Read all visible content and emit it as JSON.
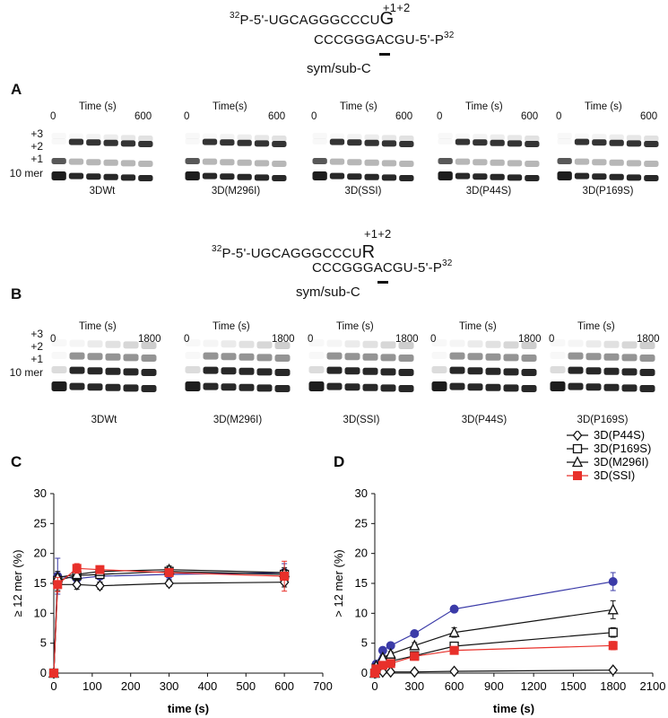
{
  "seq_top": {
    "line1_sup": "32",
    "line1_main": "P-5'-UGCAGGGCCCU",
    "line1_big": "G",
    "positions": "+1+2",
    "line2_main": "CCCGGGACGU-5'-P",
    "line2_sup": "32",
    "substrate": "sym/sub-C"
  },
  "seq_mid": {
    "line1_sup": "32",
    "line1_main": "P-5'-UGCAGGGCCCU",
    "line1_big": "R",
    "positions": "+1+2",
    "line2_main": "CCCGGGACGU-5'-P",
    "line2_sup": "32",
    "substrate": "sym/sub-C"
  },
  "panelA": {
    "letter": "A",
    "row_labels": [
      "+3",
      "+2",
      "+1",
      "10 mer"
    ],
    "gels": [
      {
        "name": "3DWt",
        "time_label": "Time (s)",
        "t0": "0",
        "tend": "600"
      },
      {
        "name": "3D(M296I)",
        "time_label": "Time(s)",
        "t0": "0",
        "tend": "600"
      },
      {
        "name": "3D(SSI)",
        "time_label": "Time (s)",
        "t0": "0",
        "tend": "600"
      },
      {
        "name": "3D(P44S)",
        "time_label": "Time (s)",
        "t0": "0",
        "tend": "600"
      },
      {
        "name": "3D(P169S)",
        "time_label": "Time (s)",
        "t0": "0",
        "tend": "600"
      }
    ]
  },
  "panelB": {
    "letter": "B",
    "row_labels": [
      "+3",
      "+2",
      "+1",
      "10 mer"
    ],
    "gels": [
      {
        "name": "3DWt",
        "time_label": "Time (s)",
        "t0": "0",
        "tend": "1800"
      },
      {
        "name": "3D(M296I)",
        "time_label": "Time (s)",
        "t0": "0",
        "tend": "1800"
      },
      {
        "name": "3D(SSI)",
        "time_label": "Time (s)",
        "t0": "0",
        "tend": "1800"
      },
      {
        "name": "3D(P44S)",
        "time_label": "Time (s)",
        "t0": "0",
        "tend": "1800"
      },
      {
        "name": "3D(P169S)",
        "time_label": "Time (s)",
        "t0": "0",
        "tend": "1800"
      }
    ]
  },
  "chart_data": [
    {
      "panel": "C",
      "type": "line",
      "xlabel": "time (s)",
      "ylabel": "≥ 12 mer (%)",
      "xlim": [
        0,
        700
      ],
      "ylim": [
        0,
        30
      ],
      "xticks": [
        0,
        100,
        200,
        300,
        400,
        500,
        600,
        700
      ],
      "yticks": [
        0,
        5,
        10,
        15,
        20,
        25,
        30
      ],
      "series": [
        {
          "name": "3DWt",
          "color": "#3b3ba8",
          "marker": "circle",
          "x": [
            0,
            10,
            60,
            120,
            300,
            600
          ],
          "y": [
            0,
            16.2,
            15.8,
            16.2,
            16.5,
            16.8
          ],
          "err": [
            0,
            3.0,
            0.8,
            1.0,
            0.8,
            1.5
          ]
        },
        {
          "name": "3D(P44S)",
          "color": "#111111",
          "marker": "diamond-open",
          "x": [
            0,
            10,
            60,
            120,
            300,
            600
          ],
          "y": [
            0,
            14.8,
            14.8,
            14.6,
            15.0,
            15.2
          ],
          "err": [
            0,
            1.0,
            0.8,
            0.6,
            0.5,
            0.8
          ]
        },
        {
          "name": "3D(P169S)",
          "color": "#111111",
          "marker": "square-open",
          "x": [
            0,
            10,
            60,
            120,
            300,
            600
          ],
          "y": [
            0,
            15.5,
            16.3,
            16.5,
            17.0,
            16.5
          ],
          "err": [
            0,
            1.0,
            0.8,
            0.6,
            0.6,
            0.8
          ]
        },
        {
          "name": "3D(M296I)",
          "color": "#111111",
          "marker": "triangle-open",
          "x": [
            0,
            10,
            60,
            120,
            300,
            600
          ],
          "y": [
            0,
            16.0,
            16.5,
            17.0,
            17.3,
            16.8
          ],
          "err": [
            0,
            1.0,
            0.8,
            0.6,
            0.6,
            0.8
          ]
        },
        {
          "name": "3D(SSI)",
          "color": "#e8302a",
          "marker": "square",
          "x": [
            0,
            10,
            60,
            120,
            300,
            600
          ],
          "y": [
            0,
            14.8,
            17.5,
            17.3,
            16.8,
            16.2
          ],
          "err": [
            0,
            1.2,
            0.8,
            0.6,
            0.6,
            2.5
          ]
        }
      ]
    },
    {
      "panel": "D",
      "type": "line",
      "xlabel": "time (s)",
      "ylabel": "> 12 mer (%)",
      "xlim": [
        0,
        2100
      ],
      "ylim": [
        0,
        30
      ],
      "xticks": [
        0,
        300,
        600,
        900,
        1200,
        1500,
        1800,
        2100
      ],
      "yticks": [
        0,
        5,
        10,
        15,
        20,
        25,
        30
      ],
      "legend": "top-right",
      "series": [
        {
          "name": "3DWt",
          "color": "#3b3ba8",
          "marker": "circle",
          "x": [
            0,
            10,
            60,
            120,
            300,
            600,
            1800
          ],
          "y": [
            0,
            1.5,
            3.8,
            4.6,
            6.6,
            10.7,
            15.3
          ],
          "err": [
            0,
            0.3,
            0.3,
            0.3,
            0.3,
            0.4,
            1.5
          ]
        },
        {
          "name": "3D(P44S)",
          "color": "#111111",
          "marker": "diamond-open",
          "x": [
            0,
            10,
            60,
            120,
            300,
            600,
            1800
          ],
          "y": [
            0,
            0.1,
            0.2,
            0.2,
            0.2,
            0.3,
            0.5
          ],
          "err": [
            0,
            0.1,
            0.1,
            0.1,
            0.1,
            0.1,
            0.2
          ]
        },
        {
          "name": "3D(P169S)",
          "color": "#111111",
          "marker": "square-open",
          "x": [
            0,
            10,
            60,
            120,
            300,
            600,
            1800
          ],
          "y": [
            0,
            0.8,
            1.6,
            2.0,
            2.9,
            4.5,
            6.8
          ],
          "err": [
            0,
            0.2,
            0.3,
            0.3,
            0.4,
            0.5,
            0.8
          ]
        },
        {
          "name": "3D(M296I)",
          "color": "#111111",
          "marker": "triangle-open",
          "x": [
            0,
            10,
            60,
            120,
            300,
            600,
            1800
          ],
          "y": [
            0,
            1.2,
            2.6,
            3.2,
            4.6,
            6.8,
            10.6
          ],
          "err": [
            0,
            0.3,
            0.4,
            0.4,
            0.5,
            0.8,
            1.5
          ]
        },
        {
          "name": "3D(SSI)",
          "color": "#e8302a",
          "marker": "square",
          "x": [
            0,
            10,
            60,
            120,
            300,
            600,
            1800
          ],
          "y": [
            0,
            0.7,
            1.3,
            1.6,
            2.8,
            3.8,
            4.6
          ],
          "err": [
            0,
            0.2,
            0.3,
            0.3,
            0.4,
            0.6,
            0.7
          ]
        }
      ]
    }
  ]
}
